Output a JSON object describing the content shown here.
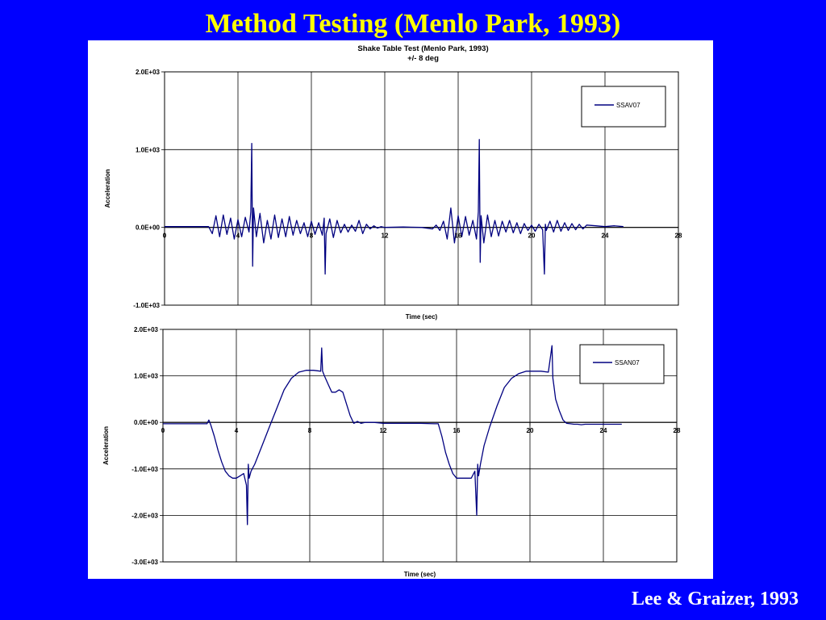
{
  "slide": {
    "title": "Method Testing (Menlo Park, 1993)",
    "citation": "Lee & Graizer, 1993"
  },
  "colors": {
    "background": "#0000ff",
    "title": "#ffff00",
    "citation": "#ffffff",
    "trace": "#000080"
  },
  "chart_data": [
    {
      "type": "line",
      "title": "Shake Table Test (Menlo Park, 1993)",
      "subtitle": "+/- 8 deg",
      "xlabel": "Time (sec)",
      "ylabel": "Acceleration",
      "xlim": [
        0,
        28
      ],
      "ylim": [
        -1000,
        2000
      ],
      "xticks": [
        0,
        4,
        8,
        12,
        16,
        20,
        24,
        28
      ],
      "xtick_labels": [
        "0",
        "4",
        "8",
        "12",
        "16",
        "20",
        "24",
        "28"
      ],
      "yticks": [
        -1000,
        0,
        1000,
        2000
      ],
      "ytick_labels": [
        "-1.0E+03",
        "0.0E+00",
        "1.0E+03",
        "2.0E+03"
      ],
      "grid": true,
      "legend_position": "top-right",
      "series": [
        {
          "name": "SSAV07",
          "x": [
            0,
            2.4,
            2.6,
            2.8,
            3.0,
            3.2,
            3.4,
            3.6,
            3.8,
            4.0,
            4.2,
            4.4,
            4.6,
            4.7,
            4.75,
            4.8,
            4.85,
            5.0,
            5.2,
            5.4,
            5.6,
            5.8,
            6.0,
            6.2,
            6.4,
            6.6,
            6.8,
            7.0,
            7.2,
            7.4,
            7.6,
            7.8,
            8.0,
            8.2,
            8.4,
            8.6,
            8.7,
            8.75,
            8.8,
            9.0,
            9.2,
            9.4,
            9.6,
            9.8,
            10.0,
            10.2,
            10.4,
            10.6,
            10.8,
            11.0,
            11.2,
            11.4,
            11.6,
            11.8,
            12.0,
            13.0,
            14.0,
            14.6,
            14.8,
            15.0,
            15.2,
            15.4,
            15.6,
            15.8,
            16.0,
            16.2,
            16.4,
            16.6,
            16.8,
            17.0,
            17.1,
            17.15,
            17.2,
            17.25,
            17.4,
            17.6,
            17.8,
            18.0,
            18.2,
            18.4,
            18.6,
            18.8,
            19.0,
            19.2,
            19.4,
            19.6,
            19.8,
            20.0,
            20.2,
            20.4,
            20.6,
            20.7,
            20.75,
            20.8,
            21.0,
            21.2,
            21.4,
            21.6,
            21.8,
            22.0,
            22.2,
            22.4,
            22.6,
            22.8,
            23.0,
            23.5,
            24.0,
            24.5,
            25.0
          ],
          "y": [
            10,
            10,
            -80,
            150,
            -120,
            160,
            -90,
            120,
            -150,
            100,
            -120,
            130,
            -60,
            200,
            1080,
            -500,
            250,
            -120,
            180,
            -200,
            90,
            -150,
            160,
            -130,
            110,
            -120,
            140,
            -100,
            90,
            -80,
            60,
            -120,
            80,
            -90,
            60,
            -100,
            120,
            -600,
            -80,
            110,
            -130,
            90,
            -70,
            40,
            -60,
            30,
            -50,
            90,
            -80,
            40,
            -20,
            20,
            -10,
            10,
            0,
            5,
            0,
            -20,
            30,
            -40,
            80,
            -150,
            250,
            -200,
            150,
            -120,
            140,
            -100,
            90,
            -150,
            200,
            1130,
            -450,
            150,
            -200,
            160,
            -120,
            90,
            -110,
            80,
            -60,
            90,
            -70,
            60,
            -80,
            50,
            -40,
            30,
            -50,
            40,
            -30,
            -600,
            40,
            -40,
            80,
            -60,
            90,
            -50,
            60,
            -40,
            50,
            -30,
            40,
            -20,
            30,
            20,
            10,
            20,
            10
          ]
        }
      ]
    },
    {
      "type": "line",
      "title": "",
      "xlabel": "Time (sec)",
      "ylabel": "Acceleration",
      "xlim": [
        0,
        28
      ],
      "ylim": [
        -3000,
        2000
      ],
      "xticks": [
        0,
        4,
        8,
        12,
        16,
        20,
        24,
        28
      ],
      "xtick_labels": [
        "0",
        "4",
        "8",
        "12",
        "16",
        "20",
        "24",
        "28"
      ],
      "yticks": [
        -3000,
        -2000,
        -1000,
        0,
        1000,
        2000
      ],
      "ytick_labels": [
        "-3.0E+03",
        "-2.0E+03",
        "-1.0E+03",
        "0.0E+00",
        "1.0E+03",
        "2.0E+03"
      ],
      "grid": true,
      "legend_position": "top-right",
      "series": [
        {
          "name": "SSAN07",
          "x": [
            0,
            2.4,
            2.5,
            2.6,
            2.8,
            3.0,
            3.2,
            3.4,
            3.6,
            3.8,
            4.0,
            4.2,
            4.4,
            4.55,
            4.6,
            4.65,
            4.7,
            4.8,
            5.0,
            5.4,
            5.8,
            6.2,
            6.6,
            7.0,
            7.4,
            7.8,
            8.2,
            8.6,
            8.65,
            8.7,
            8.8,
            9.0,
            9.2,
            9.4,
            9.6,
            9.8,
            10.0,
            10.2,
            10.4,
            10.6,
            10.8,
            11.0,
            11.5,
            12.0,
            13.0,
            14.0,
            14.8,
            15.0,
            15.2,
            15.4,
            15.6,
            15.8,
            16.0,
            16.4,
            16.8,
            17.0,
            17.1,
            17.15,
            17.2,
            17.3,
            17.5,
            17.8,
            18.2,
            18.6,
            19.0,
            19.4,
            19.8,
            20.2,
            20.6,
            21.0,
            21.2,
            21.25,
            21.3,
            21.4,
            21.6,
            21.8,
            22.0,
            22.2,
            22.4,
            22.6,
            22.8,
            23.0,
            23.5,
            24.0,
            24.5,
            25.0
          ],
          "y": [
            -30,
            -30,
            50,
            -50,
            -300,
            -600,
            -850,
            -1050,
            -1150,
            -1200,
            -1200,
            -1150,
            -1100,
            -1350,
            -2200,
            -900,
            -1200,
            -1050,
            -900,
            -500,
            -100,
            300,
            700,
            950,
            1080,
            1120,
            1120,
            1100,
            1600,
            1100,
            1000,
            820,
            650,
            650,
            700,
            650,
            400,
            150,
            -20,
            20,
            -20,
            0,
            0,
            -20,
            -20,
            -20,
            -30,
            -30,
            -300,
            -650,
            -900,
            -1100,
            -1200,
            -1200,
            -1200,
            -1050,
            -2000,
            -900,
            -1150,
            -900,
            -500,
            -100,
            350,
            750,
            950,
            1050,
            1100,
            1100,
            1100,
            1080,
            1650,
            950,
            800,
            500,
            250,
            50,
            -20,
            -30,
            -40,
            -40,
            -50,
            -40,
            -40,
            -40,
            -40,
            -40
          ]
        }
      ]
    }
  ]
}
